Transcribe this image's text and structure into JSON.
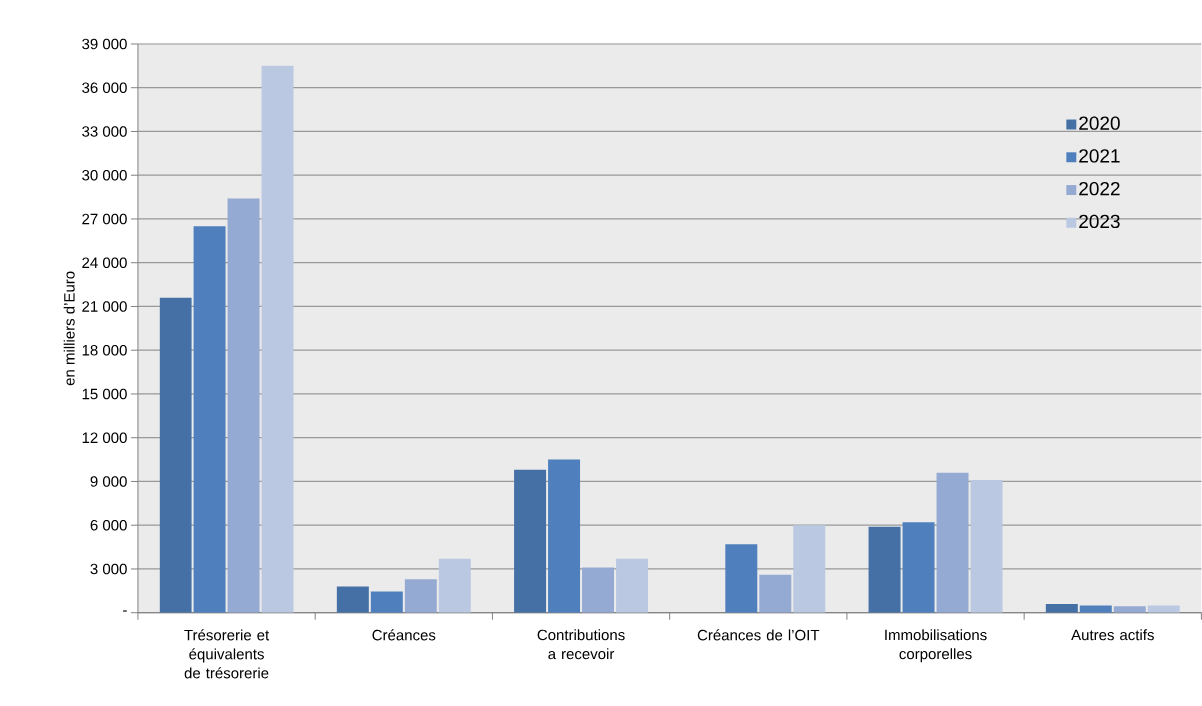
{
  "chart_data": {
    "type": "bar",
    "ylabel": "en milliers d’Euro",
    "categories": [
      "Trésorerie et équivalents de trésorerie",
      "Créances",
      "Contributions a recevoir",
      "Créances de l’OIT",
      "Immobilisations corporelles",
      "Autres actifs"
    ],
    "series": [
      {
        "name": "2020",
        "color": "#4470a6",
        "values": [
          21600,
          1800,
          9800,
          null,
          5900,
          600
        ]
      },
      {
        "name": "2021",
        "color": "#4f80bd",
        "values": [
          26500,
          1450,
          10500,
          4700,
          6200,
          500
        ]
      },
      {
        "name": "2022",
        "color": "#95aad2",
        "values": [
          28400,
          2300,
          3100,
          2600,
          9600,
          450
        ]
      },
      {
        "name": "2023",
        "color": "#bbc8e2",
        "values": [
          37500,
          3700,
          3700,
          6000,
          9100,
          500
        ]
      }
    ],
    "ylim": [
      0,
      39000
    ],
    "yticks": [
      {
        "value": 0,
        "label": "-"
      },
      {
        "value": 3000,
        "label": "3 000"
      },
      {
        "value": 6000,
        "label": "6 000"
      },
      {
        "value": 9000,
        "label": "9 000"
      },
      {
        "value": 12000,
        "label": "12 000"
      },
      {
        "value": 15000,
        "label": "15 000"
      },
      {
        "value": 18000,
        "label": "18 000"
      },
      {
        "value": 21000,
        "label": "21 000"
      },
      {
        "value": 24000,
        "label": "24 000"
      },
      {
        "value": 27000,
        "label": "27 000"
      },
      {
        "value": 30000,
        "label": "30 000"
      },
      {
        "value": 33000,
        "label": "33 000"
      },
      {
        "value": 36000,
        "label": "36 000"
      },
      {
        "value": 39000,
        "label": "39 000"
      }
    ],
    "grid": "y",
    "legend": "top right"
  }
}
